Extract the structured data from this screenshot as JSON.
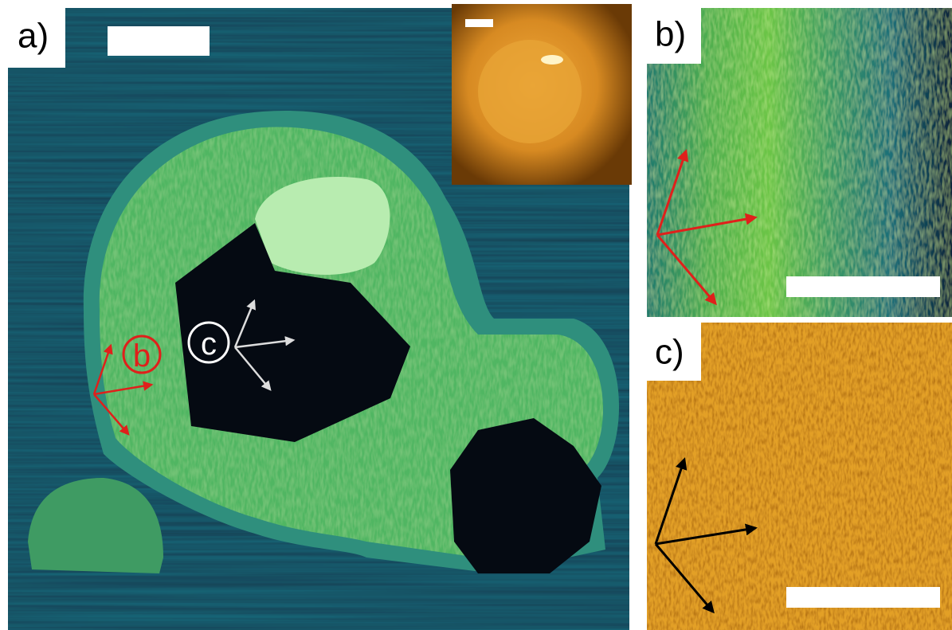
{
  "panels": [
    {
      "label": "a)",
      "markers": [
        "b",
        "c"
      ]
    },
    {
      "label": "b)"
    },
    {
      "label": "c)"
    }
  ]
}
